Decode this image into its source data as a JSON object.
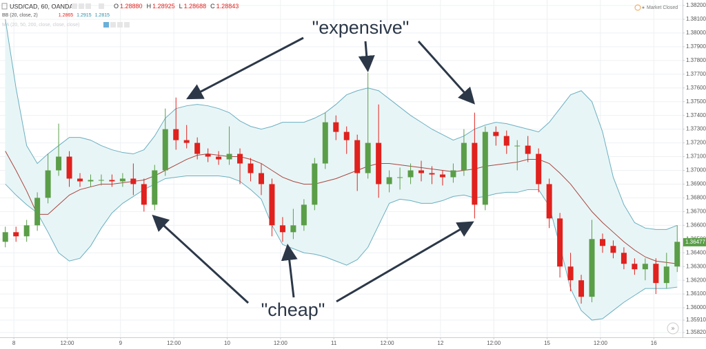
{
  "chart_data": {
    "type": "candlestick",
    "title": "USD/CAD, 60, OANDA",
    "ohlc_readout": [
      {
        "label": "O",
        "value": "1.28880"
      },
      {
        "label": "H",
        "value": "1.28925"
      },
      {
        "label": "L",
        "value": "1.28688"
      },
      {
        "label": "C",
        "value": "1.28843"
      }
    ],
    "indicator": {
      "name": "BB (20, close, 2)",
      "values": [
        "1.2865",
        "1.2915",
        "1.2815"
      ]
    },
    "ma_label": "MA (20, 50, 200, close, close, close)",
    "status": "Market Closed",
    "annotations": [
      "\"expensive\"",
      "\"cheap\""
    ],
    "last_price": {
      "value": 1.36477,
      "label": "1.36477"
    },
    "colors": {
      "up": "#5a9e48",
      "down": "#e0211d",
      "band": "#6aafc0",
      "basis": "#a8453f",
      "band_fill": "#e8f5f6"
    },
    "grid": true,
    "xlim": [
      -0.5,
      63.5
    ],
    "xticks": [
      {
        "value": 0.8,
        "label": "8"
      },
      {
        "value": 5.8,
        "label": "12:00"
      },
      {
        "value": 10.8,
        "label": "9"
      },
      {
        "value": 15.8,
        "label": "12:00"
      },
      {
        "value": 20.8,
        "label": "10"
      },
      {
        "value": 25.8,
        "label": "12:00"
      },
      {
        "value": 30.8,
        "label": "11"
      },
      {
        "value": 35.8,
        "label": "12:00"
      },
      {
        "value": 40.8,
        "label": "12"
      },
      {
        "value": 45.8,
        "label": "12:00"
      },
      {
        "value": 50.8,
        "label": "15"
      },
      {
        "value": 55.8,
        "label": "12:00"
      },
      {
        "value": 60.8,
        "label": "16"
      }
    ],
    "ylim": [
      1.35785,
      1.3824
    ],
    "yticks": [
      {
        "value": 1.3582,
        "label": "1.35820"
      },
      {
        "value": 1.3591,
        "label": "1.35910"
      },
      {
        "value": 1.36,
        "label": "1.36000"
      },
      {
        "value": 1.361,
        "label": "1.36100"
      },
      {
        "value": 1.362,
        "label": "1.36200"
      },
      {
        "value": 1.363,
        "label": "1.36300"
      },
      {
        "value": 1.364,
        "label": "1.36400"
      },
      {
        "value": 1.365,
        "label": "1.36500"
      },
      {
        "value": 1.366,
        "label": "1.36600"
      },
      {
        "value": 1.367,
        "label": "1.36700"
      },
      {
        "value": 1.368,
        "label": "1.36800"
      },
      {
        "value": 1.369,
        "label": "1.36900"
      },
      {
        "value": 1.37,
        "label": "1.37000"
      },
      {
        "value": 1.371,
        "label": "1.37100"
      },
      {
        "value": 1.372,
        "label": "1.37200"
      },
      {
        "value": 1.373,
        "label": "1.37300"
      },
      {
        "value": 1.374,
        "label": "1.37400"
      },
      {
        "value": 1.375,
        "label": "1.37500"
      },
      {
        "value": 1.376,
        "label": "1.37600"
      },
      {
        "value": 1.377,
        "label": "1.37700"
      },
      {
        "value": 1.378,
        "label": "1.37800"
      },
      {
        "value": 1.379,
        "label": "1.37900"
      },
      {
        "value": 1.38,
        "label": "1.38000"
      },
      {
        "value": 1.381,
        "label": "1.38100"
      },
      {
        "value": 1.382,
        "label": "1.38200"
      }
    ],
    "open": [
      1.3648,
      1.3655,
      1.3652,
      1.366,
      1.368,
      1.37,
      1.371,
      1.3694,
      1.3692,
      1.3693,
      1.3693,
      1.3692,
      1.3694,
      1.369,
      1.3675,
      1.37,
      1.373,
      1.3722,
      1.372,
      1.3712,
      1.371,
      1.3708,
      1.3712,
      1.3705,
      1.3698,
      1.369,
      1.366,
      1.3655,
      1.366,
      1.3675,
      1.3705,
      1.3735,
      1.3728,
      1.3722,
      1.3698,
      1.372,
      1.369,
      1.3695,
      1.3695,
      1.37,
      1.3698,
      1.3697,
      1.3695,
      1.37,
      1.372,
      1.3675,
      1.3728,
      1.3725,
      1.3718,
      1.3718,
      1.3712,
      1.369,
      1.3665,
      1.363,
      1.362,
      1.3608,
      1.365,
      1.3645,
      1.364,
      1.3632,
      1.3628,
      1.3632,
      1.3618,
      1.363
    ],
    "high": [
      1.3659,
      1.3659,
      1.3664,
      1.3684,
      1.3712,
      1.3734,
      1.3714,
      1.3698,
      1.3697,
      1.3697,
      1.3697,
      1.3698,
      1.3705,
      1.3694,
      1.3704,
      1.3745,
      1.3753,
      1.3733,
      1.3724,
      1.3716,
      1.3714,
      1.3732,
      1.3716,
      1.3709,
      1.3705,
      1.3694,
      1.3666,
      1.3672,
      1.3679,
      1.3709,
      1.3742,
      1.374,
      1.3732,
      1.3726,
      1.3771,
      1.3748,
      1.37,
      1.3702,
      1.3705,
      1.3707,
      1.3703,
      1.37,
      1.3705,
      1.373,
      1.3742,
      1.3732,
      1.3732,
      1.3729,
      1.3722,
      1.3725,
      1.3716,
      1.3694,
      1.3669,
      1.364,
      1.3624,
      1.3664,
      1.3654,
      1.3649,
      1.3644,
      1.3636,
      1.3636,
      1.3636,
      1.364,
      1.366
    ],
    "low": [
      1.3644,
      1.3648,
      1.3648,
      1.3656,
      1.3676,
      1.3696,
      1.3688,
      1.3688,
      1.3688,
      1.3689,
      1.3688,
      1.3688,
      1.3682,
      1.367,
      1.3671,
      1.3696,
      1.3715,
      1.3716,
      1.3708,
      1.3706,
      1.3704,
      1.3704,
      1.369,
      1.3692,
      1.3682,
      1.3652,
      1.3648,
      1.365,
      1.3656,
      1.3671,
      1.3701,
      1.3722,
      1.3712,
      1.3685,
      1.3694,
      1.368,
      1.3684,
      1.3686,
      1.369,
      1.3692,
      1.369,
      1.3689,
      1.3691,
      1.3696,
      1.3665,
      1.3671,
      1.3718,
      1.3712,
      1.37,
      1.3706,
      1.3684,
      1.3658,
      1.3622,
      1.3612,
      1.3603,
      1.3604,
      1.364,
      1.3636,
      1.3628,
      1.3624,
      1.362,
      1.361,
      1.3614,
      1.3626
    ],
    "close": [
      1.3655,
      1.3652,
      1.366,
      1.368,
      1.37,
      1.371,
      1.3694,
      1.3692,
      1.3693,
      1.3693,
      1.3692,
      1.3694,
      1.369,
      1.3675,
      1.37,
      1.373,
      1.3722,
      1.372,
      1.3712,
      1.371,
      1.3708,
      1.3712,
      1.3705,
      1.3698,
      1.369,
      1.366,
      1.3655,
      1.366,
      1.3675,
      1.3705,
      1.3735,
      1.3728,
      1.3722,
      1.3698,
      1.372,
      1.369,
      1.3695,
      1.3695,
      1.37,
      1.3698,
      1.3697,
      1.3695,
      1.37,
      1.372,
      1.3675,
      1.3728,
      1.3725,
      1.3718,
      1.3718,
      1.3712,
      1.369,
      1.3665,
      1.363,
      1.362,
      1.3608,
      1.365,
      1.3645,
      1.364,
      1.3632,
      1.3628,
      1.3632,
      1.3618,
      1.363,
      1.3648
    ],
    "bands": {
      "upper": [
        1.381,
        1.376,
        1.3718,
        1.3705,
        1.3712,
        1.3718,
        1.3724,
        1.3724,
        1.3722,
        1.3718,
        1.3715,
        1.3713,
        1.3712,
        1.3715,
        1.3725,
        1.3738,
        1.3745,
        1.3747,
        1.3748,
        1.3747,
        1.3745,
        1.3742,
        1.3736,
        1.3732,
        1.373,
        1.3732,
        1.3735,
        1.3735,
        1.3735,
        1.3738,
        1.3742,
        1.3748,
        1.3755,
        1.3758,
        1.376,
        1.3758,
        1.3752,
        1.3746,
        1.374,
        1.3735,
        1.373,
        1.3726,
        1.3722,
        1.3725,
        1.373,
        1.3733,
        1.3735,
        1.3734,
        1.3732,
        1.373,
        1.3728,
        1.3735,
        1.3745,
        1.3755,
        1.3758,
        1.375,
        1.3728,
        1.3695,
        1.3675,
        1.3662,
        1.3658,
        1.3657,
        1.3657,
        1.366
      ],
      "middle": [
        1.3714,
        1.37,
        1.3685,
        1.3668,
        1.3668,
        1.3675,
        1.3682,
        1.3686,
        1.3688,
        1.369,
        1.369,
        1.3691,
        1.3692,
        1.3693,
        1.3696,
        1.37,
        1.3704,
        1.3708,
        1.3711,
        1.3712,
        1.3711,
        1.371,
        1.371,
        1.3708,
        1.3705,
        1.37,
        1.3695,
        1.3692,
        1.369,
        1.369,
        1.3692,
        1.3694,
        1.3697,
        1.37,
        1.3703,
        1.3705,
        1.3705,
        1.3704,
        1.3703,
        1.3702,
        1.3701,
        1.37,
        1.3699,
        1.37,
        1.3701,
        1.3703,
        1.3704,
        1.3705,
        1.3706,
        1.3708,
        1.3708,
        1.3705,
        1.3698,
        1.369,
        1.368,
        1.367,
        1.3662,
        1.3655,
        1.3648,
        1.3642,
        1.3637,
        1.3634,
        1.3633,
        1.3632
      ],
      "lower": [
        1.369,
        1.3682,
        1.3675,
        1.3669,
        1.3655,
        1.364,
        1.3634,
        1.3636,
        1.3645,
        1.3658,
        1.3669,
        1.3676,
        1.3681,
        1.3686,
        1.369,
        1.3694,
        1.3695,
        1.3696,
        1.3696,
        1.3696,
        1.3696,
        1.3695,
        1.3692,
        1.3686,
        1.3679,
        1.366,
        1.3646,
        1.3643,
        1.364,
        1.3639,
        1.3637,
        1.3634,
        1.3631,
        1.3635,
        1.3644,
        1.366,
        1.3676,
        1.3679,
        1.3678,
        1.3676,
        1.3676,
        1.3678,
        1.3681,
        1.3682,
        1.368,
        1.3681,
        1.3683,
        1.3684,
        1.3684,
        1.3686,
        1.3686,
        1.3674,
        1.3645,
        1.3614,
        1.3598,
        1.3591,
        1.3592,
        1.3598,
        1.3604,
        1.3609,
        1.3614,
        1.3614,
        1.3614,
        1.3615
      ]
    }
  }
}
